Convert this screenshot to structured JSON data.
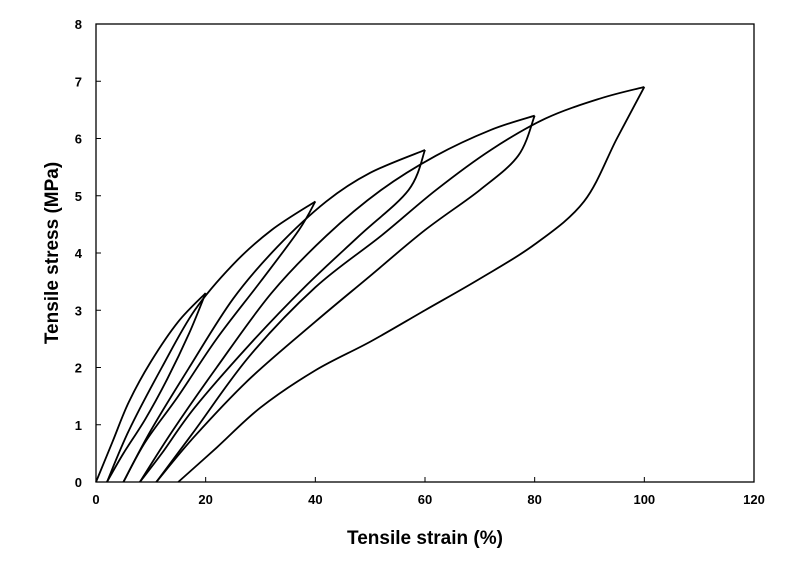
{
  "chart_data": {
    "type": "line",
    "title": "",
    "xlabel": "Tensile strain (%)",
    "ylabel": "Tensile stress (MPa)",
    "xlim": [
      0,
      120
    ],
    "ylim": [
      0,
      8
    ],
    "xticks": [
      0,
      20,
      40,
      60,
      80,
      100,
      120
    ],
    "yticks": [
      0,
      1,
      2,
      3,
      4,
      5,
      6,
      7,
      8
    ],
    "grid": false,
    "legend": "none",
    "line_color": "#000000",
    "series": [
      {
        "loading": [
          [
            0,
            0
          ],
          [
            3,
            0.7
          ],
          [
            6,
            1.4
          ],
          [
            10,
            2.1
          ],
          [
            15,
            2.8
          ],
          [
            20,
            3.3
          ]
        ],
        "unloading": [
          [
            20,
            3.3
          ],
          [
            17,
            2.6
          ],
          [
            13,
            1.8
          ],
          [
            9,
            1.1
          ],
          [
            5,
            0.5
          ],
          [
            2,
            0
          ]
        ]
      },
      {
        "loading": [
          [
            2,
            0
          ],
          [
            6,
            0.9
          ],
          [
            12,
            2.0
          ],
          [
            18,
            3.0
          ],
          [
            25,
            3.8
          ],
          [
            32,
            4.4
          ],
          [
            40,
            4.9
          ]
        ],
        "unloading": [
          [
            40,
            4.9
          ],
          [
            37,
            4.4
          ],
          [
            30,
            3.5
          ],
          [
            22,
            2.5
          ],
          [
            15,
            1.5
          ],
          [
            9,
            0.7
          ],
          [
            5,
            0
          ]
        ]
      },
      {
        "loading": [
          [
            5,
            0
          ],
          [
            10,
            0.9
          ],
          [
            17,
            2.0
          ],
          [
            25,
            3.2
          ],
          [
            33,
            4.1
          ],
          [
            42,
            4.9
          ],
          [
            50,
            5.4
          ],
          [
            60,
            5.8
          ]
        ],
        "unloading": [
          [
            60,
            5.8
          ],
          [
            57,
            5.1
          ],
          [
            48,
            4.3
          ],
          [
            38,
            3.4
          ],
          [
            28,
            2.4
          ],
          [
            18,
            1.3
          ],
          [
            12,
            0.5
          ],
          [
            8,
            0
          ]
        ]
      },
      {
        "loading": [
          [
            8,
            0
          ],
          [
            14,
            0.9
          ],
          [
            22,
            2.0
          ],
          [
            32,
            3.3
          ],
          [
            42,
            4.3
          ],
          [
            52,
            5.1
          ],
          [
            62,
            5.7
          ],
          [
            72,
            6.15
          ],
          [
            80,
            6.4
          ]
        ],
        "unloading": [
          [
            80,
            6.4
          ],
          [
            77,
            5.7
          ],
          [
            70,
            5.1
          ],
          [
            60,
            4.4
          ],
          [
            50,
            3.6
          ],
          [
            40,
            2.8
          ],
          [
            28,
            1.8
          ],
          [
            18,
            0.8
          ],
          [
            11,
            0
          ]
        ]
      },
      {
        "loading": [
          [
            11,
            0
          ],
          [
            18,
            0.9
          ],
          [
            28,
            2.2
          ],
          [
            40,
            3.4
          ],
          [
            52,
            4.3
          ],
          [
            62,
            5.1
          ],
          [
            72,
            5.8
          ],
          [
            82,
            6.35
          ],
          [
            92,
            6.7
          ],
          [
            100,
            6.9
          ]
        ],
        "unloading": [
          [
            100,
            6.9
          ],
          [
            95,
            6.0
          ],
          [
            89,
            4.9
          ],
          [
            80,
            4.15
          ],
          [
            70,
            3.55
          ],
          [
            60,
            3.0
          ],
          [
            50,
            2.45
          ],
          [
            40,
            1.95
          ],
          [
            30,
            1.3
          ],
          [
            22,
            0.6
          ],
          [
            15,
            0
          ]
        ]
      }
    ]
  }
}
